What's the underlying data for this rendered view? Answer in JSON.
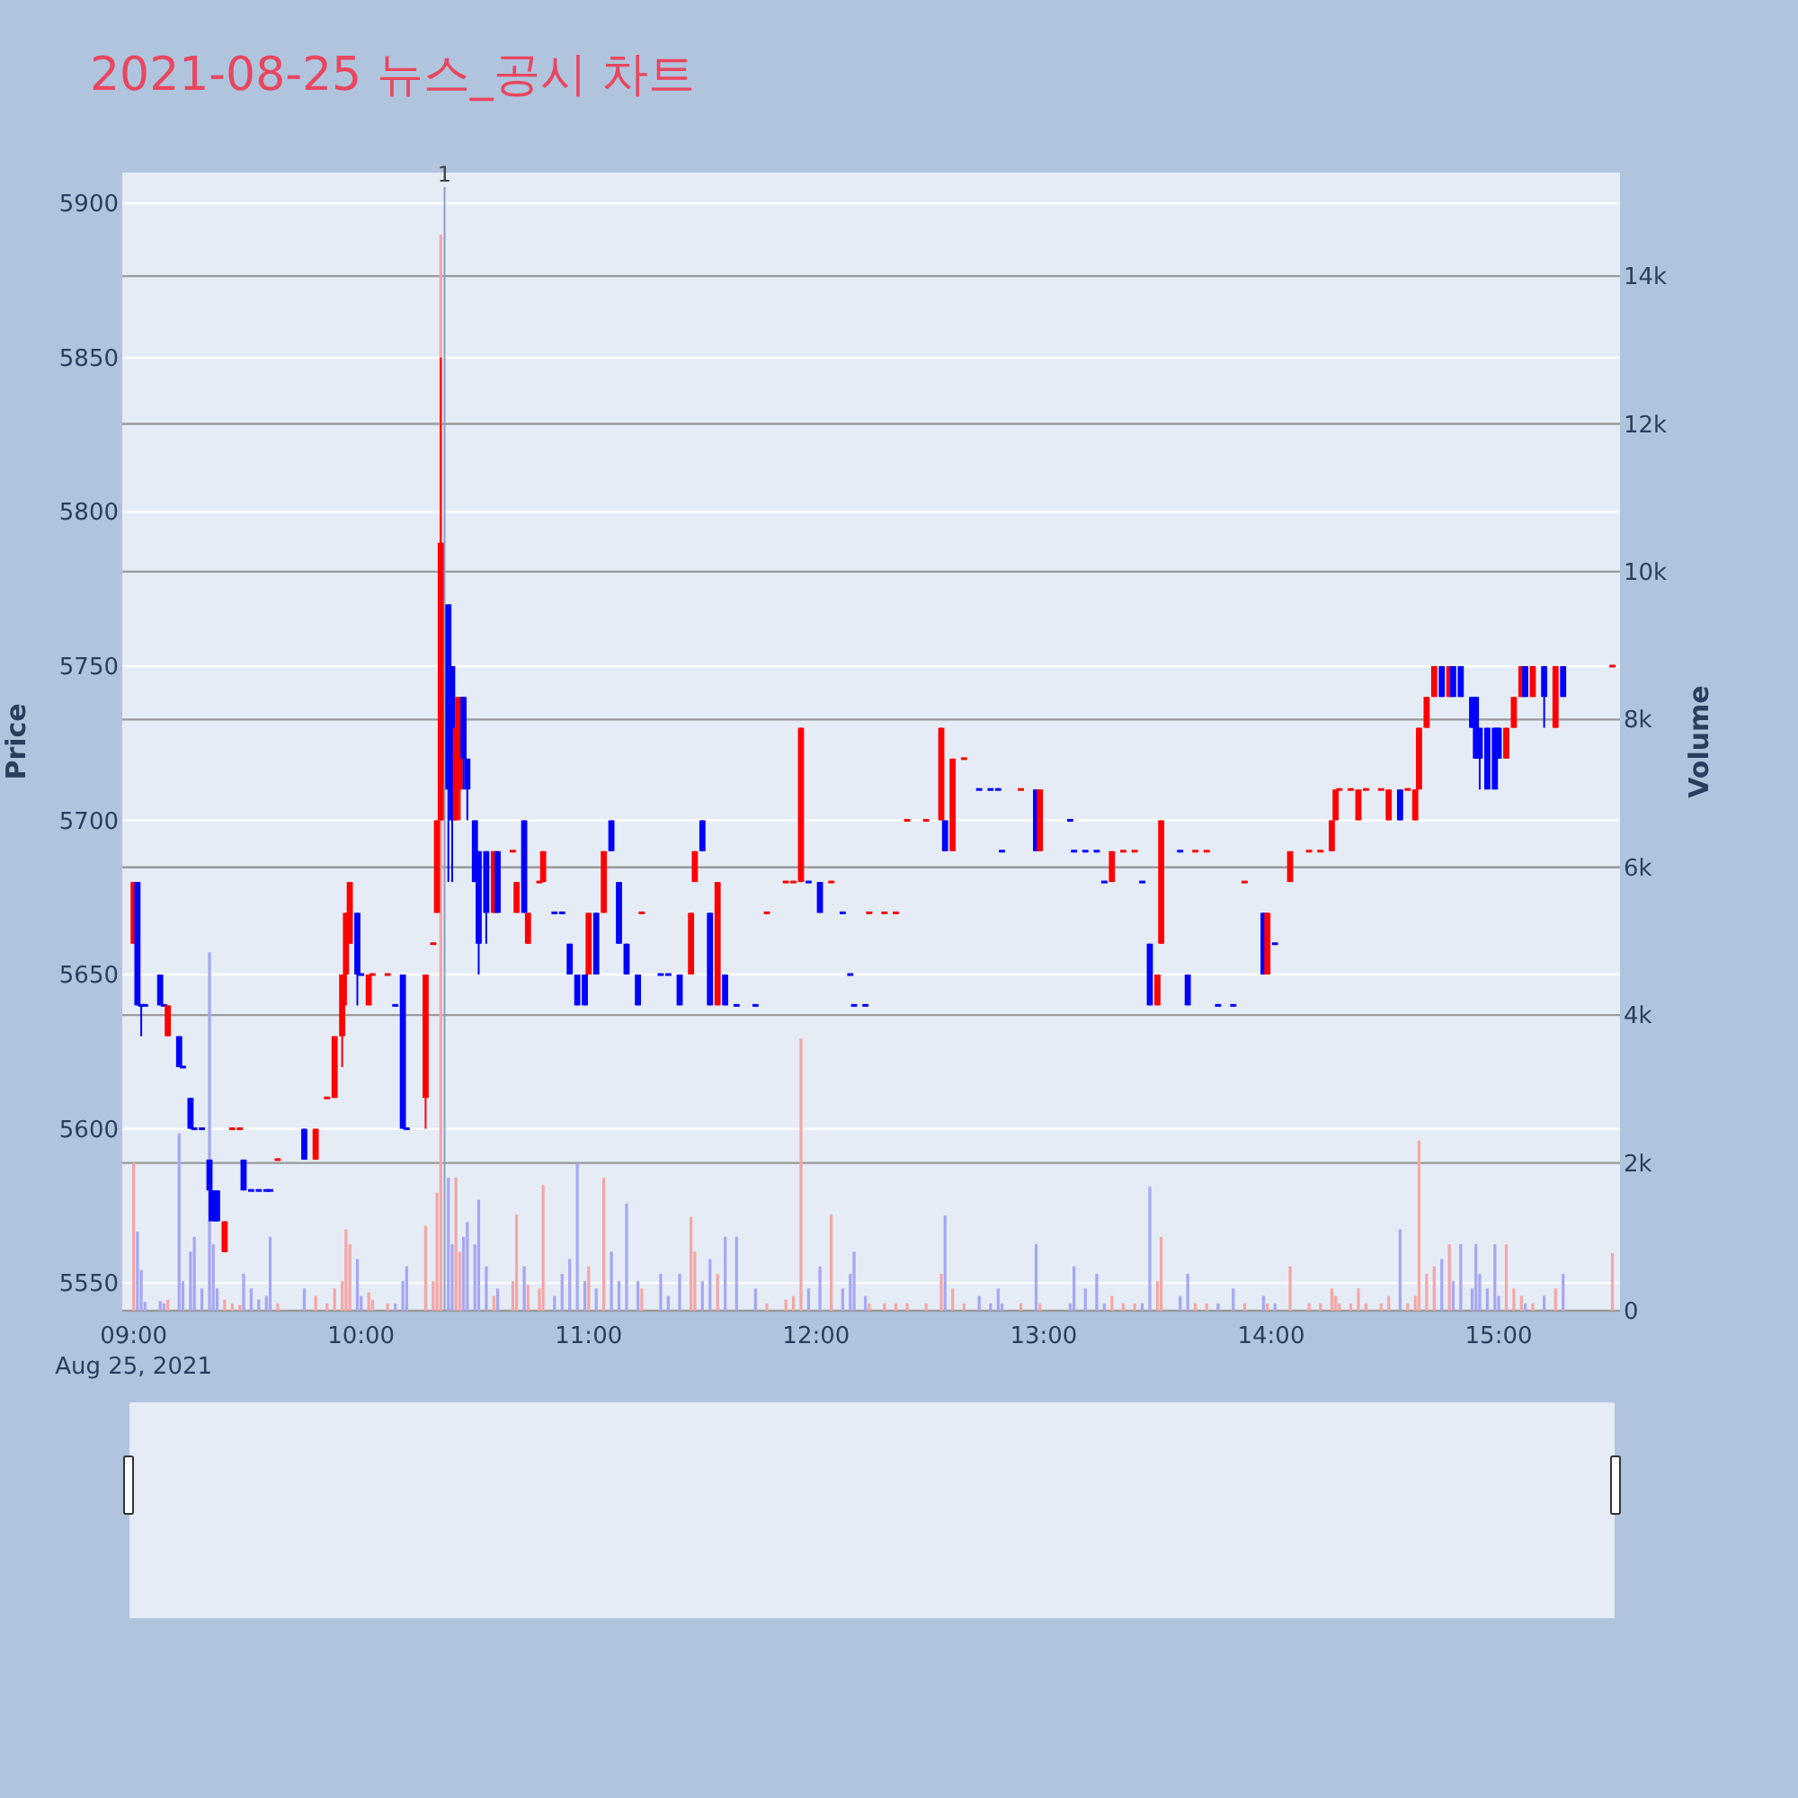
{
  "chart_data": {
    "type": "candlestick",
    "title": "2021-08-25 뉴스_공시 차트",
    "ylabel": "Price",
    "y2label": "Volume",
    "x": [
      "2021-08-25T09:00",
      "2021-08-25T09:01",
      "2021-08-25T09:02",
      "2021-08-25T09:03",
      "2021-08-25T09:07",
      "2021-08-25T09:08",
      "2021-08-25T09:09",
      "2021-08-25T09:12",
      "2021-08-25T09:13",
      "2021-08-25T09:15",
      "2021-08-25T09:16",
      "2021-08-25T09:18",
      "2021-08-25T09:20",
      "2021-08-25T09:21",
      "2021-08-25T09:22",
      "2021-08-25T09:24",
      "2021-08-25T09:26",
      "2021-08-25T09:28",
      "2021-08-25T09:29",
      "2021-08-25T09:31",
      "2021-08-25T09:33",
      "2021-08-25T09:35",
      "2021-08-25T09:36",
      "2021-08-25T09:38",
      "2021-08-25T09:45",
      "2021-08-25T09:48",
      "2021-08-25T09:51",
      "2021-08-25T09:53",
      "2021-08-25T09:55",
      "2021-08-25T09:56",
      "2021-08-25T09:57",
      "2021-08-25T09:59",
      "2021-08-25T10:00",
      "2021-08-25T10:02",
      "2021-08-25T10:03",
      "2021-08-25T10:07",
      "2021-08-25T10:09",
      "2021-08-25T10:11",
      "2021-08-25T10:12",
      "2021-08-25T10:17",
      "2021-08-25T10:19",
      "2021-08-25T10:20",
      "2021-08-25T10:21",
      "2021-08-25T10:23",
      "2021-08-25T10:24",
      "2021-08-25T10:25",
      "2021-08-25T10:26",
      "2021-08-25T10:27",
      "2021-08-25T10:28",
      "2021-08-25T10:30",
      "2021-08-25T10:31",
      "2021-08-25T10:33",
      "2021-08-25T10:35",
      "2021-08-25T10:36",
      "2021-08-25T10:40",
      "2021-08-25T10:41",
      "2021-08-25T10:43",
      "2021-08-25T10:44",
      "2021-08-25T10:47",
      "2021-08-25T10:48",
      "2021-08-25T10:51",
      "2021-08-25T10:53",
      "2021-08-25T10:55",
      "2021-08-25T10:57",
      "2021-08-25T10:59",
      "2021-08-25T11:00",
      "2021-08-25T11:02",
      "2021-08-25T11:04",
      "2021-08-25T11:06",
      "2021-08-25T11:08",
      "2021-08-25T11:10",
      "2021-08-25T11:13",
      "2021-08-25T11:14",
      "2021-08-25T11:19",
      "2021-08-25T11:21",
      "2021-08-25T11:24",
      "2021-08-25T11:27",
      "2021-08-25T11:28",
      "2021-08-25T11:30",
      "2021-08-25T11:32",
      "2021-08-25T11:34",
      "2021-08-25T11:36",
      "2021-08-25T11:39",
      "2021-08-25T11:44",
      "2021-08-25T11:47",
      "2021-08-25T11:52",
      "2021-08-25T11:54",
      "2021-08-25T11:56",
      "2021-08-25T11:58",
      "2021-08-25T12:01",
      "2021-08-25T12:04",
      "2021-08-25T12:07",
      "2021-08-25T12:09",
      "2021-08-25T12:10",
      "2021-08-25T12:13",
      "2021-08-25T12:14",
      "2021-08-25T12:18",
      "2021-08-25T12:21",
      "2021-08-25T12:24",
      "2021-08-25T12:29",
      "2021-08-25T12:33",
      "2021-08-25T12:34",
      "2021-08-25T12:36",
      "2021-08-25T12:39",
      "2021-08-25T12:43",
      "2021-08-25T12:46",
      "2021-08-25T12:48",
      "2021-08-25T12:49",
      "2021-08-25T12:54",
      "2021-08-25T12:58",
      "2021-08-25T12:59",
      "2021-08-25T13:07",
      "2021-08-25T13:08",
      "2021-08-25T13:11",
      "2021-08-25T13:14",
      "2021-08-25T13:16",
      "2021-08-25T13:18",
      "2021-08-25T13:21",
      "2021-08-25T13:24",
      "2021-08-25T13:26",
      "2021-08-25T13:28",
      "2021-08-25T13:30",
      "2021-08-25T13:31",
      "2021-08-25T13:36",
      "2021-08-25T13:38",
      "2021-08-25T13:40",
      "2021-08-25T13:43",
      "2021-08-25T13:46",
      "2021-08-25T13:50",
      "2021-08-25T13:53",
      "2021-08-25T13:58",
      "2021-08-25T13:59",
      "2021-08-25T14:01",
      "2021-08-25T14:05",
      "2021-08-25T14:10",
      "2021-08-25T14:13",
      "2021-08-25T14:16",
      "2021-08-25T14:17",
      "2021-08-25T14:18",
      "2021-08-25T14:21",
      "2021-08-25T14:23",
      "2021-08-25T14:25",
      "2021-08-25T14:29",
      "2021-08-25T14:31",
      "2021-08-25T14:34",
      "2021-08-25T14:36",
      "2021-08-25T14:38",
      "2021-08-25T14:39",
      "2021-08-25T14:41",
      "2021-08-25T14:43",
      "2021-08-25T14:45",
      "2021-08-25T14:47",
      "2021-08-25T14:48",
      "2021-08-25T14:50",
      "2021-08-25T14:53",
      "2021-08-25T14:54",
      "2021-08-25T14:55",
      "2021-08-25T14:57",
      "2021-08-25T14:59",
      "2021-08-25T15:00",
      "2021-08-25T15:02",
      "2021-08-25T15:04",
      "2021-08-25T15:06",
      "2021-08-25T15:07",
      "2021-08-25T15:09",
      "2021-08-25T15:12",
      "2021-08-25T15:15",
      "2021-08-25T15:17",
      "2021-08-25T15:30"
    ],
    "ohlc": [
      [
        5660,
        5680,
        5660,
        5680
      ],
      [
        5680,
        5680,
        5640,
        5640
      ],
      [
        5640,
        5640,
        5630,
        5640
      ],
      [
        5640,
        5640,
        5640,
        5640
      ],
      [
        5650,
        5650,
        5640,
        5640
      ],
      [
        5640,
        5640,
        5640,
        5640
      ],
      [
        5630,
        5640,
        5630,
        5640
      ],
      [
        5630,
        5630,
        5620,
        5620
      ],
      [
        5620,
        5620,
        5620,
        5620
      ],
      [
        5610,
        5610,
        5600,
        5600
      ],
      [
        5600,
        5600,
        5600,
        5600
      ],
      [
        5600,
        5600,
        5600,
        5600
      ],
      [
        5590,
        5590,
        5570,
        5580
      ],
      [
        5580,
        5580,
        5570,
        5570
      ],
      [
        5580,
        5580,
        5570,
        5570
      ],
      [
        5560,
        5570,
        5560,
        5570
      ],
      [
        5600,
        5600,
        5600,
        5600
      ],
      [
        5600,
        5600,
        5600,
        5600
      ],
      [
        5590,
        5590,
        5580,
        5580
      ],
      [
        5580,
        5580,
        5580,
        5580
      ],
      [
        5580,
        5580,
        5580,
        5580
      ],
      [
        5580,
        5580,
        5580,
        5580
      ],
      [
        5580,
        5580,
        5580,
        5580
      ],
      [
        5590,
        5590,
        5590,
        5590
      ],
      [
        5600,
        5600,
        5590,
        5590
      ],
      [
        5590,
        5600,
        5590,
        5600
      ],
      [
        5610,
        5610,
        5610,
        5610
      ],
      [
        5610,
        5630,
        5610,
        5630
      ],
      [
        5630,
        5650,
        5620,
        5650
      ],
      [
        5650,
        5670,
        5640,
        5670
      ],
      [
        5660,
        5680,
        5660,
        5680
      ],
      [
        5670,
        5670,
        5640,
        5650
      ],
      [
        5650,
        5650,
        5650,
        5650
      ],
      [
        5640,
        5650,
        5640,
        5650
      ],
      [
        5650,
        5650,
        5650,
        5650
      ],
      [
        5650,
        5650,
        5650,
        5650
      ],
      [
        5640,
        5640,
        5640,
        5640
      ],
      [
        5650,
        5650,
        5600,
        5600
      ],
      [
        5600,
        5600,
        5600,
        5600
      ],
      [
        5610,
        5650,
        5600,
        5650
      ],
      [
        5660,
        5660,
        5660,
        5660
      ],
      [
        5670,
        5700,
        5670,
        5700
      ],
      [
        5700,
        5850,
        5700,
        5790
      ],
      [
        5770,
        5770,
        5680,
        5710
      ],
      [
        5750,
        5750,
        5680,
        5700
      ],
      [
        5700,
        5740,
        5700,
        5730
      ],
      [
        5710,
        5740,
        5700,
        5740
      ],
      [
        5740,
        5740,
        5710,
        5720
      ],
      [
        5720,
        5720,
        5700,
        5710
      ],
      [
        5700,
        5700,
        5680,
        5680
      ],
      [
        5690,
        5690,
        5650,
        5660
      ],
      [
        5690,
        5690,
        5660,
        5670
      ],
      [
        5670,
        5690,
        5670,
        5690
      ],
      [
        5690,
        5690,
        5670,
        5670
      ],
      [
        5690,
        5690,
        5690,
        5690
      ],
      [
        5670,
        5680,
        5670,
        5680
      ],
      [
        5700,
        5700,
        5670,
        5670
      ],
      [
        5660,
        5670,
        5660,
        5670
      ],
      [
        5680,
        5680,
        5680,
        5680
      ],
      [
        5680,
        5690,
        5680,
        5690
      ],
      [
        5670,
        5670,
        5670,
        5670
      ],
      [
        5670,
        5670,
        5670,
        5670
      ],
      [
        5660,
        5660,
        5650,
        5650
      ],
      [
        5650,
        5650,
        5640,
        5640
      ],
      [
        5650,
        5650,
        5640,
        5640
      ],
      [
        5650,
        5670,
        5650,
        5670
      ],
      [
        5670,
        5670,
        5650,
        5650
      ],
      [
        5670,
        5690,
        5670,
        5690
      ],
      [
        5700,
        5700,
        5690,
        5690
      ],
      [
        5680,
        5680,
        5660,
        5660
      ],
      [
        5660,
        5660,
        5650,
        5650
      ],
      [
        5650,
        5650,
        5640,
        5640
      ],
      [
        5670,
        5670,
        5670,
        5670
      ],
      [
        5650,
        5650,
        5650,
        5650
      ],
      [
        5650,
        5650,
        5650,
        5650
      ],
      [
        5650,
        5650,
        5640,
        5640
      ],
      [
        5650,
        5670,
        5650,
        5670
      ],
      [
        5680,
        5690,
        5680,
        5690
      ],
      [
        5700,
        5700,
        5690,
        5690
      ],
      [
        5670,
        5670,
        5640,
        5640
      ],
      [
        5640,
        5680,
        5640,
        5680
      ],
      [
        5650,
        5650,
        5640,
        5640
      ],
      [
        5640,
        5640,
        5640,
        5640
      ],
      [
        5640,
        5640,
        5640,
        5640
      ],
      [
        5670,
        5670,
        5670,
        5670
      ],
      [
        5680,
        5680,
        5680,
        5680
      ],
      [
        5680,
        5680,
        5680,
        5680
      ],
      [
        5680,
        5730,
        5680,
        5730
      ],
      [
        5680,
        5680,
        5680,
        5680
      ],
      [
        5680,
        5680,
        5670,
        5670
      ],
      [
        5680,
        5680,
        5680,
        5680
      ],
      [
        5670,
        5670,
        5670,
        5670
      ],
      [
        5650,
        5650,
        5650,
        5650
      ],
      [
        5640,
        5640,
        5640,
        5640
      ],
      [
        5640,
        5640,
        5640,
        5640
      ],
      [
        5670,
        5670,
        5670,
        5670
      ],
      [
        5670,
        5670,
        5670,
        5670
      ],
      [
        5670,
        5670,
        5670,
        5670
      ],
      [
        5700,
        5700,
        5700,
        5700
      ],
      [
        5700,
        5700,
        5700,
        5700
      ],
      [
        5700,
        5730,
        5700,
        5730
      ],
      [
        5700,
        5700,
        5690,
        5690
      ],
      [
        5690,
        5720,
        5690,
        5720
      ],
      [
        5720,
        5720,
        5720,
        5720
      ],
      [
        5710,
        5710,
        5710,
        5710
      ],
      [
        5710,
        5710,
        5710,
        5710
      ],
      [
        5710,
        5710,
        5710,
        5710
      ],
      [
        5690,
        5690,
        5690,
        5690
      ],
      [
        5710,
        5710,
        5710,
        5710
      ],
      [
        5710,
        5710,
        5690,
        5690
      ],
      [
        5690,
        5710,
        5690,
        5710
      ],
      [
        5700,
        5700,
        5700,
        5700
      ],
      [
        5690,
        5690,
        5690,
        5690
      ],
      [
        5690,
        5690,
        5690,
        5690
      ],
      [
        5690,
        5690,
        5690,
        5690
      ],
      [
        5680,
        5680,
        5680,
        5680
      ],
      [
        5680,
        5690,
        5680,
        5690
      ],
      [
        5690,
        5690,
        5690,
        5690
      ],
      [
        5690,
        5690,
        5690,
        5690
      ],
      [
        5680,
        5680,
        5680,
        5680
      ],
      [
        5660,
        5660,
        5640,
        5640
      ],
      [
        5640,
        5650,
        5640,
        5650
      ],
      [
        5660,
        5700,
        5660,
        5700
      ],
      [
        5690,
        5690,
        5690,
        5690
      ],
      [
        5650,
        5650,
        5640,
        5640
      ],
      [
        5690,
        5690,
        5690,
        5690
      ],
      [
        5690,
        5690,
        5690,
        5690
      ],
      [
        5640,
        5640,
        5640,
        5640
      ],
      [
        5640,
        5640,
        5640,
        5640
      ],
      [
        5680,
        5680,
        5680,
        5680
      ],
      [
        5670,
        5670,
        5650,
        5650
      ],
      [
        5650,
        5670,
        5650,
        5670
      ],
      [
        5660,
        5660,
        5660,
        5660
      ],
      [
        5680,
        5690,
        5680,
        5690
      ],
      [
        5690,
        5690,
        5690,
        5690
      ],
      [
        5690,
        5690,
        5690,
        5690
      ],
      [
        5690,
        5700,
        5690,
        5700
      ],
      [
        5700,
        5710,
        5700,
        5710
      ],
      [
        5710,
        5710,
        5710,
        5710
      ],
      [
        5710,
        5710,
        5710,
        5710
      ],
      [
        5700,
        5710,
        5700,
        5710
      ],
      [
        5710,
        5710,
        5710,
        5710
      ],
      [
        5710,
        5710,
        5710,
        5710
      ],
      [
        5700,
        5710,
        5700,
        5710
      ],
      [
        5710,
        5710,
        5700,
        5700
      ],
      [
        5710,
        5710,
        5710,
        5710
      ],
      [
        5700,
        5710,
        5700,
        5710
      ],
      [
        5710,
        5730,
        5710,
        5730
      ],
      [
        5730,
        5740,
        5730,
        5740
      ],
      [
        5740,
        5750,
        5740,
        5750
      ],
      [
        5750,
        5750,
        5740,
        5740
      ],
      [
        5740,
        5750,
        5740,
        5750
      ],
      [
        5750,
        5750,
        5740,
        5740
      ],
      [
        5750,
        5750,
        5740,
        5740
      ],
      [
        5740,
        5740,
        5730,
        5730
      ],
      [
        5740,
        5740,
        5720,
        5720
      ],
      [
        5730,
        5730,
        5710,
        5720
      ],
      [
        5730,
        5730,
        5710,
        5710
      ],
      [
        5730,
        5730,
        5710,
        5710
      ],
      [
        5730,
        5730,
        5720,
        5720
      ],
      [
        5720,
        5730,
        5720,
        5730
      ],
      [
        5730,
        5740,
        5730,
        5740
      ],
      [
        5740,
        5750,
        5740,
        5750
      ],
      [
        5750,
        5750,
        5740,
        5740
      ],
      [
        5740,
        5750,
        5740,
        5750
      ],
      [
        5750,
        5750,
        5730,
        5740
      ],
      [
        5730,
        5750,
        5730,
        5750
      ],
      [
        5750,
        5750,
        5740,
        5740
      ],
      [
        5750,
        5750,
        5750,
        5750
      ]
    ],
    "colors": [
      "#ff0000",
      "#0000ff",
      "#0000ff",
      "#0000ff",
      "#0000ff",
      "#0000ff",
      "#ff0000",
      "#0000ff",
      "#0000ff",
      "#0000ff",
      "#0000ff",
      "#0000ff",
      "#0000ff",
      "#0000ff",
      "#0000ff",
      "#ff0000",
      "#ff0000",
      "#ff0000",
      "#0000ff",
      "#0000ff",
      "#0000ff",
      "#0000ff",
      "#0000ff",
      "#ff0000",
      "#0000ff",
      "#ff0000",
      "#ff0000",
      "#ff0000",
      "#ff0000",
      "#ff0000",
      "#ff0000",
      "#0000ff",
      "#0000ff",
      "#ff0000",
      "#ff0000",
      "#ff0000",
      "#0000ff",
      "#0000ff",
      "#0000ff",
      "#ff0000",
      "#ff0000",
      "#ff0000",
      "#ff0000",
      "#0000ff",
      "#0000ff",
      "#ff0000",
      "#ff0000",
      "#0000ff",
      "#0000ff",
      "#0000ff",
      "#0000ff",
      "#0000ff",
      "#ff0000",
      "#0000ff",
      "#ff0000",
      "#ff0000",
      "#0000ff",
      "#ff0000",
      "#ff0000",
      "#ff0000",
      "#0000ff",
      "#0000ff",
      "#0000ff",
      "#0000ff",
      "#0000ff",
      "#ff0000",
      "#0000ff",
      "#ff0000",
      "#0000ff",
      "#0000ff",
      "#0000ff",
      "#0000ff",
      "#ff0000",
      "#0000ff",
      "#0000ff",
      "#0000ff",
      "#ff0000",
      "#ff0000",
      "#0000ff",
      "#0000ff",
      "#ff0000",
      "#0000ff",
      "#0000ff",
      "#0000ff",
      "#ff0000",
      "#ff0000",
      "#ff0000",
      "#ff0000",
      "#0000ff",
      "#0000ff",
      "#ff0000",
      "#0000ff",
      "#0000ff",
      "#0000ff",
      "#0000ff",
      "#ff0000",
      "#ff0000",
      "#ff0000",
      "#ff0000",
      "#ff0000",
      "#ff0000",
      "#0000ff",
      "#ff0000",
      "#ff0000",
      "#0000ff",
      "#0000ff",
      "#0000ff",
      "#0000ff",
      "#ff0000",
      "#0000ff",
      "#ff0000",
      "#0000ff",
      "#0000ff",
      "#0000ff",
      "#0000ff",
      "#0000ff",
      "#ff0000",
      "#ff0000",
      "#ff0000",
      "#0000ff",
      "#0000ff",
      "#ff0000",
      "#ff0000",
      "#0000ff",
      "#0000ff",
      "#ff0000",
      "#ff0000",
      "#0000ff",
      "#0000ff",
      "#ff0000",
      "#0000ff",
      "#ff0000",
      "#0000ff",
      "#ff0000",
      "#ff0000",
      "#ff0000",
      "#ff0000",
      "#ff0000",
      "#ff0000",
      "#ff0000",
      "#ff0000",
      "#ff0000",
      "#ff0000",
      "#ff0000",
      "#0000ff",
      "#ff0000",
      "#ff0000",
      "#ff0000",
      "#ff0000",
      "#ff0000",
      "#0000ff",
      "#ff0000",
      "#0000ff",
      "#0000ff",
      "#0000ff",
      "#0000ff",
      "#0000ff",
      "#0000ff",
      "#0000ff",
      "#0000ff",
      "#ff0000",
      "#ff0000",
      "#ff0000",
      "#0000ff",
      "#ff0000",
      "#0000ff",
      "#ff0000",
      "#0000ff",
      "#ff0000"
    ],
    "series": [
      {
        "type": "bar",
        "axis": "y2",
        "values": [
          2000,
          1070,
          550,
          120,
          130,
          100,
          150,
          2400,
          400,
          800,
          1000,
          300,
          4850,
          900,
          300,
          150,
          100,
          80,
          500,
          300,
          150,
          200,
          1000,
          100,
          300,
          200,
          100,
          300,
          400,
          1100,
          900,
          700,
          200,
          250,
          150,
          100,
          100,
          400,
          600,
          1150,
          400,
          1600,
          14560,
          1800,
          900,
          1800,
          800,
          1000,
          1200,
          900,
          1500,
          600,
          200,
          300,
          400,
          1300,
          600,
          350,
          300,
          1700,
          200,
          500,
          700,
          2000,
          400,
          600,
          300,
          1800,
          800,
          400,
          1450,
          400,
          300,
          500,
          200,
          500,
          1270,
          800,
          400,
          700,
          500,
          1000,
          1000,
          300,
          100,
          150,
          200,
          3680,
          300,
          600,
          1300,
          300,
          500,
          800,
          200,
          100,
          100,
          100,
          100,
          100,
          500,
          1290,
          300,
          100,
          200,
          100,
          300,
          100,
          100,
          900,
          100,
          100,
          600,
          300,
          500,
          100,
          200,
          100,
          100,
          100,
          1680,
          400,
          1000,
          200,
          500,
          100,
          100,
          100,
          300,
          100,
          200,
          100,
          100,
          600,
          100,
          100,
          300,
          200,
          100,
          100,
          300,
          100,
          100,
          200,
          1100,
          100,
          200,
          2300,
          500,
          600,
          700,
          900,
          400,
          900,
          300,
          900,
          500,
          300,
          900,
          200,
          900,
          300,
          200,
          100,
          100,
          200,
          300,
          500,
          780
        ],
        "colors": [
          "#f4a6a6",
          "#a6a6f4",
          "#a6a6f4",
          "#a6a6f4",
          "#a6a6f4",
          "#a6a6f4",
          "#f4a6a6",
          "#a6a6f4",
          "#a6a6f4",
          "#a6a6f4",
          "#a6a6f4",
          "#a6a6f4",
          "#a6a6f4",
          "#a6a6f4",
          "#a6a6f4",
          "#f4a6a6",
          "#f4a6a6",
          "#f4a6a6",
          "#a6a6f4",
          "#a6a6f4",
          "#a6a6f4",
          "#a6a6f4",
          "#a6a6f4",
          "#f4a6a6",
          "#a6a6f4",
          "#f4a6a6",
          "#f4a6a6",
          "#f4a6a6",
          "#f4a6a6",
          "#f4a6a6",
          "#f4a6a6",
          "#a6a6f4",
          "#a6a6f4",
          "#f4a6a6",
          "#f4a6a6",
          "#f4a6a6",
          "#a6a6f4",
          "#a6a6f4",
          "#a6a6f4",
          "#f4a6a6",
          "#f4a6a6",
          "#f4a6a6",
          "#f4a6a6",
          "#a6a6f4",
          "#a6a6f4",
          "#f4a6a6",
          "#f4a6a6",
          "#a6a6f4",
          "#a6a6f4",
          "#a6a6f4",
          "#a6a6f4",
          "#a6a6f4",
          "#f4a6a6",
          "#a6a6f4",
          "#f4a6a6",
          "#f4a6a6",
          "#a6a6f4",
          "#f4a6a6",
          "#f4a6a6",
          "#f4a6a6",
          "#a6a6f4",
          "#a6a6f4",
          "#a6a6f4",
          "#a6a6f4",
          "#a6a6f4",
          "#f4a6a6",
          "#a6a6f4",
          "#f4a6a6",
          "#a6a6f4",
          "#a6a6f4",
          "#a6a6f4",
          "#a6a6f4",
          "#f4a6a6",
          "#a6a6f4",
          "#a6a6f4",
          "#a6a6f4",
          "#f4a6a6",
          "#f4a6a6",
          "#a6a6f4",
          "#a6a6f4",
          "#f4a6a6",
          "#a6a6f4",
          "#a6a6f4",
          "#a6a6f4",
          "#f4a6a6",
          "#f4a6a6",
          "#f4a6a6",
          "#f4a6a6",
          "#a6a6f4",
          "#a6a6f4",
          "#f4a6a6",
          "#a6a6f4",
          "#a6a6f4",
          "#a6a6f4",
          "#a6a6f4",
          "#f4a6a6",
          "#f4a6a6",
          "#f4a6a6",
          "#f4a6a6",
          "#f4a6a6",
          "#f4a6a6",
          "#a6a6f4",
          "#f4a6a6",
          "#f4a6a6",
          "#a6a6f4",
          "#a6a6f4",
          "#a6a6f4",
          "#a6a6f4",
          "#f4a6a6",
          "#a6a6f4",
          "#f4a6a6",
          "#a6a6f4",
          "#a6a6f4",
          "#a6a6f4",
          "#a6a6f4",
          "#a6a6f4",
          "#f4a6a6",
          "#f4a6a6",
          "#f4a6a6",
          "#a6a6f4",
          "#a6a6f4",
          "#f4a6a6",
          "#f4a6a6",
          "#a6a6f4",
          "#a6a6f4",
          "#f4a6a6",
          "#f4a6a6",
          "#a6a6f4",
          "#a6a6f4",
          "#f4a6a6",
          "#a6a6f4",
          "#f4a6a6",
          "#a6a6f4",
          "#f4a6a6",
          "#f4a6a6",
          "#f4a6a6",
          "#f4a6a6",
          "#f4a6a6",
          "#f4a6a6",
          "#f4a6a6",
          "#f4a6a6",
          "#f4a6a6",
          "#f4a6a6",
          "#f4a6a6",
          "#a6a6f4",
          "#f4a6a6",
          "#f4a6a6",
          "#f4a6a6",
          "#f4a6a6",
          "#f4a6a6",
          "#a6a6f4",
          "#f4a6a6",
          "#a6a6f4",
          "#a6a6f4",
          "#a6a6f4",
          "#a6a6f4",
          "#a6a6f4",
          "#a6a6f4",
          "#a6a6f4",
          "#a6a6f4",
          "#f4a6a6",
          "#f4a6a6",
          "#f4a6a6",
          "#a6a6f4",
          "#f4a6a6",
          "#a6a6f4",
          "#f4a6a6",
          "#a6a6f4",
          "#f4a6a6"
        ]
      }
    ],
    "xlim": [
      "2021-08-25T08:57",
      "2021-08-25T15:32"
    ],
    "xticks": [
      {
        "value": "2021-08-25T09:00",
        "label": "09:00\nAug 25, 2021"
      },
      {
        "value": "2021-08-25T10:00",
        "label": "10:00"
      },
      {
        "value": "2021-08-25T11:00",
        "label": "11:00"
      },
      {
        "value": "2021-08-25T12:00",
        "label": "12:00"
      },
      {
        "value": "2021-08-25T13:00",
        "label": "13:00"
      },
      {
        "value": "2021-08-25T14:00",
        "label": "14:00"
      },
      {
        "value": "2021-08-25T15:00",
        "label": "15:00"
      }
    ],
    "ylim": [
      5541,
      5910
    ],
    "yticks": [
      5550,
      5600,
      5650,
      5700,
      5750,
      5800,
      5850,
      5900
    ],
    "y2lim": [
      0,
      15400
    ],
    "y2ticks": [
      0,
      {
        "value": 2000,
        "label": "2k"
      },
      {
        "value": 4000,
        "label": "4k"
      },
      {
        "value": 6000,
        "label": "6k"
      },
      {
        "value": 8000,
        "label": "8k"
      },
      {
        "value": 10000,
        "label": "10k"
      },
      {
        "value": 12000,
        "label": "12k"
      },
      {
        "value": 14000,
        "label": "14k"
      }
    ],
    "grid": "y",
    "ref_lines": [
      {
        "axis": "x",
        "value": "2021-08-25T10:22",
        "label": "1",
        "color": "#8c9ec4"
      }
    ]
  }
}
